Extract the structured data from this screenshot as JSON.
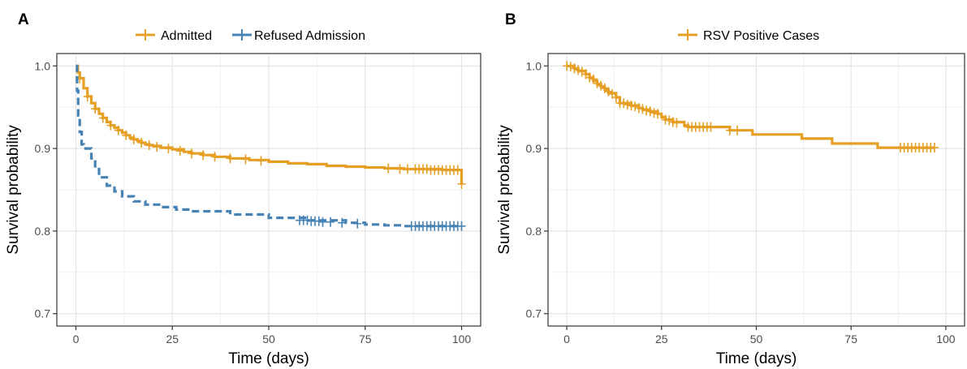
{
  "chart_data": [
    {
      "panel_label": "A",
      "type": "line",
      "step": true,
      "xlabel": "Time (days)",
      "ylabel": "Survival probability",
      "xlim": [
        0,
        100
      ],
      "ylim": [
        0.7,
        1.0
      ],
      "xticks": [
        "0",
        "25",
        "50",
        "75",
        "100"
      ],
      "yticks": [
        "0.7",
        "0.8",
        "0.9",
        "1.0"
      ],
      "grid": true,
      "legend_position": "top",
      "series": [
        {
          "name": "Admitted",
          "color": "#E69F25",
          "dash": "solid",
          "points": [
            [
              0,
              1.0
            ],
            [
              0.5,
              0.992
            ],
            [
              1,
              0.985
            ],
            [
              2,
              0.973
            ],
            [
              3,
              0.963
            ],
            [
              4,
              0.955
            ],
            [
              5,
              0.948
            ],
            [
              6,
              0.942
            ],
            [
              7,
              0.937
            ],
            [
              8,
              0.932
            ],
            [
              9,
              0.928
            ],
            [
              10,
              0.925
            ],
            [
              11,
              0.922
            ],
            [
              12,
              0.919
            ],
            [
              13,
              0.916
            ],
            [
              14,
              0.913
            ],
            [
              15,
              0.911
            ],
            [
              16,
              0.909
            ],
            [
              17,
              0.907
            ],
            [
              18,
              0.905
            ],
            [
              19,
              0.904
            ],
            [
              20,
              0.903
            ],
            [
              22,
              0.901
            ],
            [
              25,
              0.899
            ],
            [
              28,
              0.896
            ],
            [
              30,
              0.894
            ],
            [
              33,
              0.892
            ],
            [
              36,
              0.89
            ],
            [
              40,
              0.888
            ],
            [
              45,
              0.886
            ],
            [
              50,
              0.884
            ],
            [
              55,
              0.882
            ],
            [
              60,
              0.881
            ],
            [
              65,
              0.879
            ],
            [
              70,
              0.878
            ],
            [
              75,
              0.877
            ],
            [
              80,
              0.876
            ],
            [
              85,
              0.875
            ],
            [
              90,
              0.875
            ],
            [
              95,
              0.874
            ],
            [
              99.5,
              0.874
            ],
            [
              100,
              0.857
            ]
          ],
          "censored": [
            [
              1,
              0.985
            ],
            [
              3,
              0.963
            ],
            [
              5,
              0.948
            ],
            [
              7,
              0.937
            ],
            [
              9,
              0.928
            ],
            [
              11,
              0.922
            ],
            [
              13,
              0.916
            ],
            [
              15,
              0.911
            ],
            [
              17,
              0.907
            ],
            [
              19,
              0.904
            ],
            [
              21,
              0.902
            ],
            [
              24,
              0.9
            ],
            [
              27,
              0.897
            ],
            [
              30,
              0.894
            ],
            [
              33,
              0.892
            ],
            [
              36,
              0.89
            ],
            [
              40,
              0.888
            ],
            [
              44,
              0.887
            ],
            [
              48,
              0.885
            ],
            [
              81,
              0.876
            ],
            [
              84,
              0.875
            ],
            [
              86,
              0.875
            ],
            [
              88,
              0.875
            ],
            [
              89,
              0.875
            ],
            [
              90,
              0.875
            ],
            [
              91,
              0.875
            ],
            [
              92,
              0.874
            ],
            [
              93,
              0.874
            ],
            [
              94,
              0.874
            ],
            [
              95,
              0.874
            ],
            [
              96,
              0.874
            ],
            [
              97,
              0.874
            ],
            [
              98,
              0.874
            ],
            [
              99,
              0.874
            ],
            [
              100,
              0.857
            ]
          ]
        },
        {
          "name": "Refused Admission",
          "color": "#4682B4",
          "dash": "dashed",
          "points": [
            [
              0,
              1.0
            ],
            [
              0.3,
              0.97
            ],
            [
              0.6,
              0.94
            ],
            [
              1,
              0.92
            ],
            [
              1.5,
              0.905
            ],
            [
              2,
              0.9
            ],
            [
              4,
              0.888
            ],
            [
              5,
              0.875
            ],
            [
              6,
              0.865
            ],
            [
              8,
              0.855
            ],
            [
              10,
              0.848
            ],
            [
              12,
              0.842
            ],
            [
              15,
              0.836
            ],
            [
              18,
              0.832
            ],
            [
              22,
              0.829
            ],
            [
              26,
              0.826
            ],
            [
              30,
              0.824
            ],
            [
              40,
              0.82
            ],
            [
              50,
              0.816
            ],
            [
              60,
              0.813
            ],
            [
              70,
              0.81
            ],
            [
              75,
              0.808
            ],
            [
              80,
              0.807
            ],
            [
              85,
              0.806
            ],
            [
              100,
              0.806
            ]
          ],
          "censored": [
            [
              58,
              0.813
            ],
            [
              59,
              0.813
            ],
            [
              60,
              0.813
            ],
            [
              61,
              0.812
            ],
            [
              62,
              0.812
            ],
            [
              63,
              0.812
            ],
            [
              64,
              0.811
            ],
            [
              66,
              0.811
            ],
            [
              69,
              0.81
            ],
            [
              73,
              0.809
            ],
            [
              87,
              0.806
            ],
            [
              88,
              0.806
            ],
            [
              89,
              0.806
            ],
            [
              90,
              0.806
            ],
            [
              91,
              0.806
            ],
            [
              92,
              0.806
            ],
            [
              93,
              0.806
            ],
            [
              94,
              0.806
            ],
            [
              95,
              0.806
            ],
            [
              96,
              0.806
            ],
            [
              97,
              0.806
            ],
            [
              98,
              0.806
            ],
            [
              99,
              0.806
            ],
            [
              100,
              0.806
            ]
          ]
        }
      ]
    },
    {
      "panel_label": "B",
      "type": "line",
      "step": true,
      "xlabel": "Time (days)",
      "ylabel": "Survival probability",
      "xlim": [
        0,
        100
      ],
      "ylim": [
        0.7,
        1.0
      ],
      "xticks": [
        "0",
        "25",
        "50",
        "75",
        "100"
      ],
      "yticks": [
        "0.7",
        "0.8",
        "0.9",
        "1.0"
      ],
      "grid": true,
      "legend_position": "top",
      "series": [
        {
          "name": "RSV Positive Cases",
          "color": "#E69F25",
          "dash": "solid",
          "points": [
            [
              0,
              1.0
            ],
            [
              2,
              0.997
            ],
            [
              3,
              0.994
            ],
            [
              5,
              0.99
            ],
            [
              6,
              0.986
            ],
            [
              7,
              0.982
            ],
            [
              8,
              0.978
            ],
            [
              9,
              0.975
            ],
            [
              10,
              0.971
            ],
            [
              11,
              0.967
            ],
            [
              13,
              0.962
            ],
            [
              14,
              0.955
            ],
            [
              17,
              0.952
            ],
            [
              19,
              0.949
            ],
            [
              20,
              0.947
            ],
            [
              22,
              0.945
            ],
            [
              24,
              0.942
            ],
            [
              25,
              0.938
            ],
            [
              26,
              0.935
            ],
            [
              28,
              0.932
            ],
            [
              31,
              0.928
            ],
            [
              32,
              0.926
            ],
            [
              43,
              0.922
            ],
            [
              49,
              0.917
            ],
            [
              62,
              0.912
            ],
            [
              70,
              0.906
            ],
            [
              82,
              0.901
            ],
            [
              97,
              0.901
            ]
          ],
          "censored": [
            [
              0,
              1.0
            ],
            [
              1,
              0.999
            ],
            [
              2,
              0.997
            ],
            [
              3,
              0.995
            ],
            [
              4,
              0.993
            ],
            [
              5,
              0.99
            ],
            [
              6,
              0.986
            ],
            [
              7,
              0.984
            ],
            [
              8,
              0.979
            ],
            [
              9,
              0.976
            ],
            [
              10,
              0.973
            ],
            [
              11,
              0.969
            ],
            [
              12,
              0.966
            ],
            [
              13,
              0.962
            ],
            [
              14,
              0.955
            ],
            [
              15,
              0.955
            ],
            [
              16,
              0.953
            ],
            [
              17,
              0.952
            ],
            [
              18,
              0.951
            ],
            [
              19,
              0.949
            ],
            [
              20,
              0.948
            ],
            [
              21,
              0.946
            ],
            [
              22,
              0.945
            ],
            [
              23,
              0.943
            ],
            [
              24,
              0.942
            ],
            [
              26,
              0.935
            ],
            [
              27,
              0.934
            ],
            [
              28,
              0.932
            ],
            [
              29,
              0.931
            ],
            [
              32,
              0.926
            ],
            [
              33,
              0.926
            ],
            [
              34,
              0.926
            ],
            [
              35,
              0.926
            ],
            [
              36,
              0.926
            ],
            [
              37,
              0.926
            ],
            [
              38,
              0.926
            ],
            [
              43,
              0.922
            ],
            [
              45,
              0.922
            ],
            [
              88,
              0.901
            ],
            [
              89,
              0.901
            ],
            [
              90,
              0.901
            ],
            [
              91,
              0.901
            ],
            [
              92,
              0.901
            ],
            [
              93,
              0.901
            ],
            [
              94,
              0.901
            ],
            [
              95,
              0.901
            ],
            [
              96,
              0.901
            ],
            [
              97,
              0.901
            ]
          ]
        }
      ]
    }
  ]
}
